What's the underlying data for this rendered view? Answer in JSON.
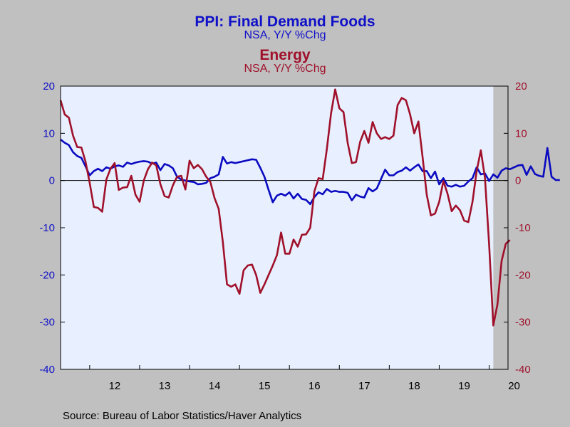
{
  "titles": {
    "left_title": "PPI: Final Demand Foods",
    "left_subtitle": "NSA, Y/Y %Chg",
    "right_title": "Energy",
    "right_subtitle": "NSA, Y/Y %Chg"
  },
  "source": "Source:  Bureau of Labor Statistics/Haver Analytics",
  "colors": {
    "foods": "#0A0AC0",
    "energy": "#A0102A",
    "plot_bg": "#E8F0FF",
    "recession": "#C0C0C0"
  },
  "chart_data": {
    "type": "line",
    "x_start": "2011-06",
    "frequency": "monthly",
    "x_tick_labels": [
      "12",
      "13",
      "14",
      "15",
      "16",
      "17",
      "18",
      "19",
      "20"
    ],
    "ylim_left": [
      -40,
      20
    ],
    "ylim_right": [
      -40,
      20
    ],
    "y_ticks": [
      20,
      10,
      0,
      -10,
      -20,
      -30,
      -40
    ],
    "shaded_region": [
      "2020-02",
      "2020-09"
    ],
    "zero_line": true,
    "grid": false,
    "series": [
      {
        "axis": "left",
        "values": [
          8.7,
          8,
          7.5,
          6,
          5.2,
          4.8,
          3,
          1.1,
          2,
          2.5,
          2,
          2.8,
          2.5,
          3,
          3.2,
          2.9,
          3.8,
          3.5,
          3.8,
          4,
          4.1,
          4,
          3.6,
          3.8,
          2.2,
          3.5,
          3.2,
          2.6,
          0.8,
          0.2,
          0,
          -0.2,
          -0.3,
          -0.8,
          -0.7,
          -0.5,
          0.5,
          0.8,
          1.3,
          5,
          3.6,
          3.9,
          3.7,
          3.9,
          4.1,
          4.3,
          4.5,
          4.4,
          2.7,
          0.8,
          -2,
          -4.6,
          -3.2,
          -2.8,
          -3.2,
          -2.5,
          -3.8,
          -2.8,
          -3.9,
          -4.1,
          -5,
          -3.5,
          -2.5,
          -2.9,
          -1.8,
          -2.4,
          -2.2,
          -2.4,
          -2.4,
          -2.6,
          -4.2,
          -3,
          -3.4,
          -3.6,
          -1.6,
          -2.3,
          -1.7,
          0.3,
          2.3,
          1.1,
          1.1,
          1.8,
          2.1,
          2.8,
          2.1,
          2.8,
          3.4,
          2,
          2,
          0.5,
          1.9,
          -0.8,
          0.5,
          -1.1,
          -1.3,
          -0.9,
          -1.3,
          -1.1,
          -0.2,
          0.5,
          2.8,
          1.3,
          1.5,
          -0.1,
          1.3,
          0.6,
          2.1,
          2.6,
          2.4,
          2.8,
          3.2,
          3.3,
          1.2,
          3,
          1.4,
          1,
          0.8,
          6.9,
          0.8,
          0.1,
          0.1
        ]
      },
      {
        "axis": "right",
        "values": [
          17,
          14,
          13.3,
          9.5,
          7.1,
          7,
          4,
          -0.5,
          -5.6,
          -5.8,
          -6.6,
          0.2,
          2.5,
          3.7,
          -2,
          -1.5,
          -1.4,
          1,
          -3,
          -4.5,
          0,
          2.4,
          3.8,
          3.2,
          -0.8,
          -3.3,
          -3.6,
          -1,
          0.8,
          1,
          -1.9,
          4.2,
          2.6,
          3.3,
          2.4,
          0.8,
          -0.3,
          -3.7,
          -6,
          -13,
          -22,
          -22.5,
          -22,
          -24,
          -19,
          -18,
          -17.8,
          -20,
          -23.8,
          -22,
          -20,
          -18,
          -15.8,
          -11,
          -15.5,
          -15.5,
          -12.5,
          -14,
          -11.5,
          -11.4,
          -10,
          -2.3,
          0.5,
          0.3,
          6.7,
          14.2,
          19.3,
          15.3,
          14.5,
          8,
          3.7,
          3.9,
          8.2,
          10.5,
          8,
          12.4,
          10,
          8.8,
          9.2,
          8.8,
          9.5,
          16,
          17.5,
          17,
          14,
          10,
          12.5,
          5,
          -3,
          -7.4,
          -7,
          -4.5,
          -0.1,
          -2.8,
          -6.5,
          -5.3,
          -6.3,
          -8.5,
          -8.8,
          -4.5,
          2,
          6.4,
          0.5,
          -13.6,
          -30.7,
          -26.2,
          -17,
          -13.4,
          -12.6
        ]
      }
    ]
  }
}
